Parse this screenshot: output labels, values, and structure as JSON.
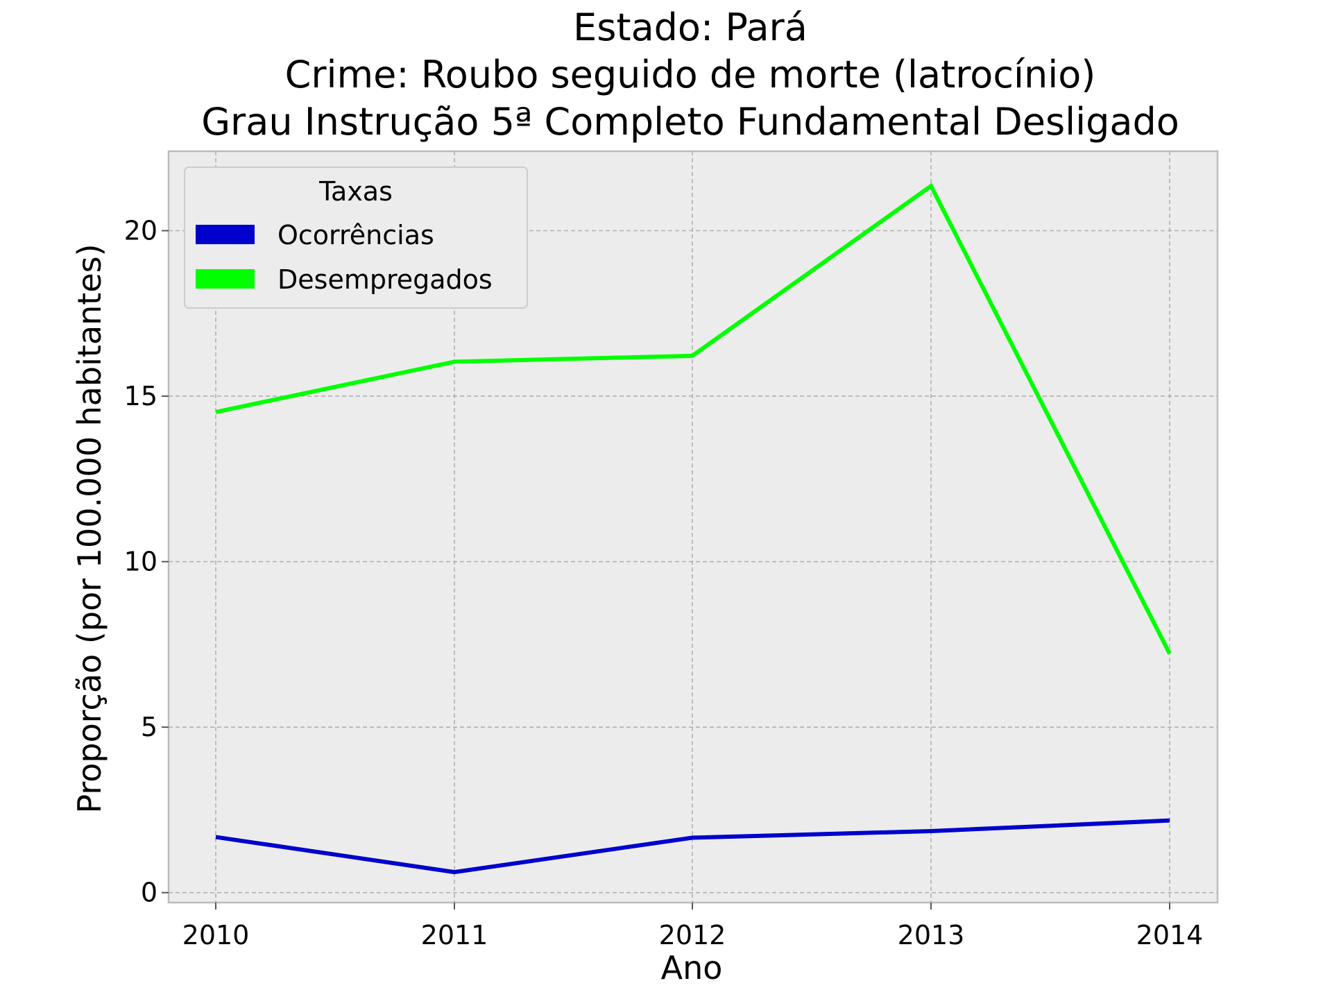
{
  "chart_data": {
    "type": "line",
    "title_lines": [
      "Estado: Pará",
      "Crime: Roubo seguido de morte (latrocínio)",
      "Grau Instrução  5ª Completo Fundamental   Desligado"
    ],
    "xlabel": "Ano",
    "ylabel": "Proporção (por 100.000 habitantes)",
    "x": [
      "2010",
      "2011",
      "2012",
      "2013",
      "2014"
    ],
    "y_ticks": [
      "0",
      "5",
      "10",
      "15",
      "20"
    ],
    "ylim": [
      -0.3,
      22.4
    ],
    "grid": true,
    "legend": {
      "title": "Taxas",
      "placement": "top-left"
    },
    "series": [
      {
        "name": "Ocorrências",
        "color": "#0000cc",
        "values": [
          1.68,
          0.62,
          1.66,
          1.86,
          2.18
        ]
      },
      {
        "name": "Desempregados",
        "color": "#00ff00",
        "values": [
          14.52,
          16.04,
          16.22,
          21.35,
          7.22
        ]
      }
    ],
    "colors": {
      "plot_background": "#ececec",
      "grid": "#b0b0b0",
      "spine": "#bcbcbc"
    }
  }
}
